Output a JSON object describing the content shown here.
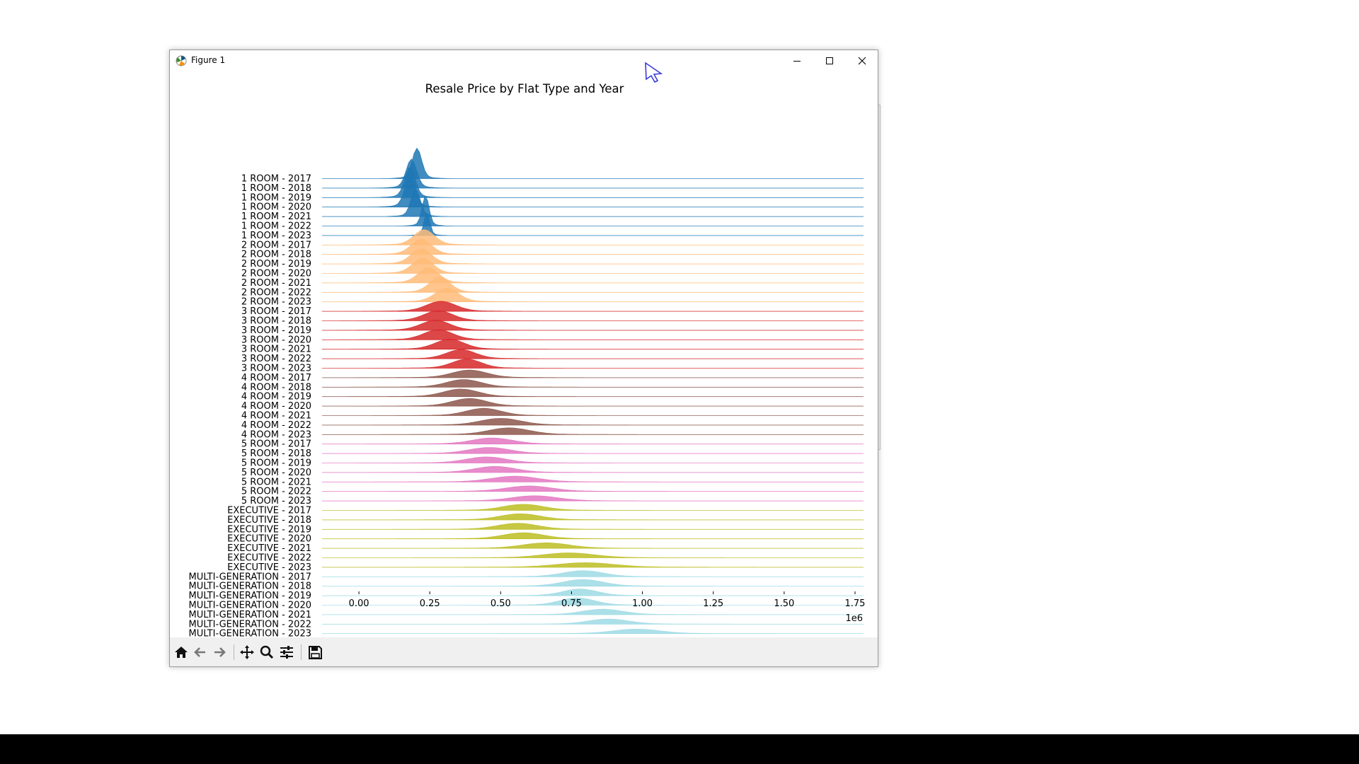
{
  "window": {
    "title": "Figure 1",
    "icons": {
      "app": "matplotlib-icon",
      "minimize": "minimize-icon",
      "maximize": "maximize-icon",
      "close": "close-icon"
    }
  },
  "toolbar": {
    "buttons": [
      "home-icon",
      "back-arrow-icon",
      "forward-arrow-icon",
      "pan-move-icon",
      "zoom-magnifier-icon",
      "configure-subplots-icon",
      "save-floppy-icon"
    ]
  },
  "chart_data": {
    "type": "area",
    "subtype": "ridgeline",
    "title": "Resale Price by Flat Type and Year",
    "xlabel": "",
    "ylabel": "",
    "x_offset_text": "1e6",
    "x_ticks": [
      "0.00",
      "0.25",
      "0.50",
      "0.75",
      "1.00",
      "1.25",
      "1.50",
      "1.75"
    ],
    "xlim": [
      -0.13,
      1.78
    ],
    "grid": false,
    "legend": "none",
    "groups": [
      {
        "name": "1 ROOM",
        "color": "#1f77b4"
      },
      {
        "name": "2 ROOM",
        "color": "#ffbb78"
      },
      {
        "name": "3 ROOM",
        "color": "#d62728"
      },
      {
        "name": "4 ROOM",
        "color": "#8c564b"
      },
      {
        "name": "5 ROOM",
        "color": "#e377c2"
      },
      {
        "name": "EXECUTIVE",
        "color": "#bcbd22"
      },
      {
        "name": "MULTI-GENERATION",
        "color": "#9edae5"
      }
    ],
    "series": [
      {
        "name": "1 ROOM - 2017",
        "group": 0,
        "peak": 0.205,
        "spread": 0.016,
        "height": 1.0
      },
      {
        "name": "1 ROOM - 2018",
        "group": 0,
        "peak": 0.185,
        "spread": 0.018,
        "height": 0.95
      },
      {
        "name": "1 ROOM - 2019",
        "group": 0,
        "peak": 0.18,
        "spread": 0.018,
        "height": 1.0
      },
      {
        "name": "1 ROOM - 2020",
        "group": 0,
        "peak": 0.18,
        "spread": 0.018,
        "height": 1.0
      },
      {
        "name": "1 ROOM - 2021",
        "group": 0,
        "peak": 0.2,
        "spread": 0.016,
        "height": 0.9
      },
      {
        "name": "1 ROOM - 2022",
        "group": 0,
        "peak": 0.235,
        "spread": 0.012,
        "height": 1.0
      },
      {
        "name": "1 ROOM - 2023",
        "group": 0,
        "peak": 0.24,
        "spread": 0.01,
        "height": 0.75
      },
      {
        "name": "2 ROOM - 2017",
        "group": 1,
        "peak": 0.23,
        "spread": 0.035,
        "height": 0.5
      },
      {
        "name": "2 ROOM - 2018",
        "group": 1,
        "peak": 0.22,
        "spread": 0.035,
        "height": 0.5
      },
      {
        "name": "2 ROOM - 2019",
        "group": 1,
        "peak": 0.22,
        "spread": 0.035,
        "height": 0.5
      },
      {
        "name": "2 ROOM - 2020",
        "group": 1,
        "peak": 0.225,
        "spread": 0.035,
        "height": 0.5
      },
      {
        "name": "2 ROOM - 2021",
        "group": 1,
        "peak": 0.245,
        "spread": 0.035,
        "height": 0.5
      },
      {
        "name": "2 ROOM - 2022",
        "group": 1,
        "peak": 0.285,
        "spread": 0.035,
        "height": 0.5
      },
      {
        "name": "2 ROOM - 2023",
        "group": 1,
        "peak": 0.31,
        "spread": 0.04,
        "height": 0.45
      },
      {
        "name": "3 ROOM - 2017",
        "group": 2,
        "peak": 0.29,
        "spread": 0.05,
        "height": 0.33
      },
      {
        "name": "3 ROOM - 2018",
        "group": 2,
        "peak": 0.28,
        "spread": 0.05,
        "height": 0.33
      },
      {
        "name": "3 ROOM - 2019",
        "group": 2,
        "peak": 0.27,
        "spread": 0.05,
        "height": 0.33
      },
      {
        "name": "3 ROOM - 2020",
        "group": 2,
        "peak": 0.28,
        "spread": 0.05,
        "height": 0.33
      },
      {
        "name": "3 ROOM - 2021",
        "group": 2,
        "peak": 0.32,
        "spread": 0.05,
        "height": 0.33
      },
      {
        "name": "3 ROOM - 2022",
        "group": 2,
        "peak": 0.36,
        "spread": 0.05,
        "height": 0.3
      },
      {
        "name": "3 ROOM - 2023",
        "group": 2,
        "peak": 0.38,
        "spread": 0.05,
        "height": 0.3
      },
      {
        "name": "4 ROOM - 2017",
        "group": 3,
        "peak": 0.39,
        "spread": 0.06,
        "height": 0.25
      },
      {
        "name": "4 ROOM - 2018",
        "group": 3,
        "peak": 0.37,
        "spread": 0.06,
        "height": 0.25
      },
      {
        "name": "4 ROOM - 2019",
        "group": 3,
        "peak": 0.36,
        "spread": 0.06,
        "height": 0.25
      },
      {
        "name": "4 ROOM - 2020",
        "group": 3,
        "peak": 0.39,
        "spread": 0.06,
        "height": 0.25
      },
      {
        "name": "4 ROOM - 2021",
        "group": 3,
        "peak": 0.44,
        "spread": 0.06,
        "height": 0.24
      },
      {
        "name": "4 ROOM - 2022",
        "group": 3,
        "peak": 0.5,
        "spread": 0.07,
        "height": 0.22
      },
      {
        "name": "4 ROOM - 2023",
        "group": 3,
        "peak": 0.53,
        "spread": 0.07,
        "height": 0.22
      },
      {
        "name": "5 ROOM - 2017",
        "group": 4,
        "peak": 0.47,
        "spread": 0.07,
        "height": 0.2
      },
      {
        "name": "5 ROOM - 2018",
        "group": 4,
        "peak": 0.46,
        "spread": 0.07,
        "height": 0.2
      },
      {
        "name": "5 ROOM - 2019",
        "group": 4,
        "peak": 0.45,
        "spread": 0.07,
        "height": 0.2
      },
      {
        "name": "5 ROOM - 2020",
        "group": 4,
        "peak": 0.48,
        "spread": 0.07,
        "height": 0.2
      },
      {
        "name": "5 ROOM - 2021",
        "group": 4,
        "peak": 0.55,
        "spread": 0.08,
        "height": 0.19
      },
      {
        "name": "5 ROOM - 2022",
        "group": 4,
        "peak": 0.6,
        "spread": 0.08,
        "height": 0.18
      },
      {
        "name": "5 ROOM - 2023",
        "group": 4,
        "peak": 0.62,
        "spread": 0.08,
        "height": 0.17
      },
      {
        "name": "EXECUTIVE - 2017",
        "group": 5,
        "peak": 0.58,
        "spread": 0.07,
        "height": 0.2
      },
      {
        "name": "EXECUTIVE - 2018",
        "group": 5,
        "peak": 0.57,
        "spread": 0.07,
        "height": 0.2
      },
      {
        "name": "EXECUTIVE - 2019",
        "group": 5,
        "peak": 0.56,
        "spread": 0.07,
        "height": 0.2
      },
      {
        "name": "EXECUTIVE - 2020",
        "group": 5,
        "peak": 0.58,
        "spread": 0.07,
        "height": 0.2
      },
      {
        "name": "EXECUTIVE - 2021",
        "group": 5,
        "peak": 0.66,
        "spread": 0.08,
        "height": 0.18
      },
      {
        "name": "EXECUTIVE - 2022",
        "group": 5,
        "peak": 0.74,
        "spread": 0.09,
        "height": 0.16
      },
      {
        "name": "EXECUTIVE - 2023",
        "group": 5,
        "peak": 0.8,
        "spread": 0.1,
        "height": 0.15
      },
      {
        "name": "MULTI-GENERATION - 2017",
        "group": 6,
        "peak": 0.79,
        "spread": 0.07,
        "height": 0.2
      },
      {
        "name": "MULTI-GENERATION - 2018",
        "group": 6,
        "peak": 0.79,
        "spread": 0.07,
        "height": 0.22
      },
      {
        "name": "MULTI-GENERATION - 2019",
        "group": 6,
        "peak": 0.78,
        "spread": 0.06,
        "height": 0.22
      },
      {
        "name": "MULTI-GENERATION - 2020",
        "group": 6,
        "peak": 0.77,
        "spread": 0.06,
        "height": 0.24
      },
      {
        "name": "MULTI-GENERATION - 2021",
        "group": 6,
        "peak": 0.86,
        "spread": 0.07,
        "height": 0.18
      },
      {
        "name": "MULTI-GENERATION - 2022",
        "group": 6,
        "peak": 0.88,
        "spread": 0.07,
        "height": 0.17
      },
      {
        "name": "MULTI-GENERATION - 2023",
        "group": 6,
        "peak": 0.98,
        "spread": 0.08,
        "height": 0.15
      }
    ]
  }
}
